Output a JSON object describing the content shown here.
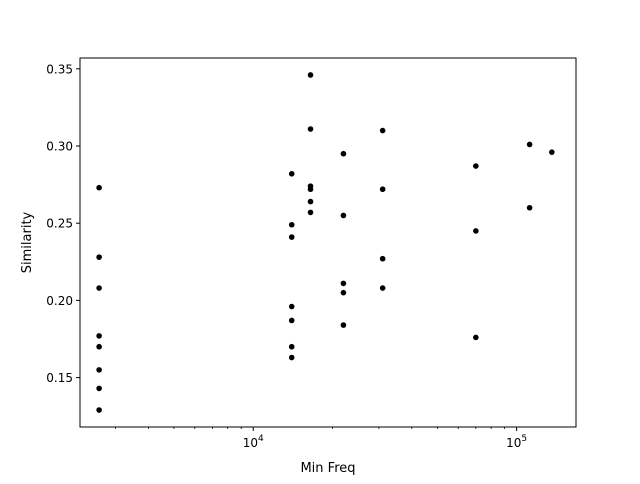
{
  "chart_data": {
    "type": "scatter",
    "title": "",
    "xlabel": "Min Freq",
    "ylabel": "Similarity",
    "xscale": "log",
    "xlim": [
      2200,
      168000
    ],
    "ylim": [
      0.118,
      0.357
    ],
    "grid": false,
    "marker_color": "#000000",
    "y_ticks": [
      {
        "value": 0.15,
        "label": "0.15"
      },
      {
        "value": 0.2,
        "label": "0.20"
      },
      {
        "value": 0.25,
        "label": "0.25"
      },
      {
        "value": 0.3,
        "label": "0.30"
      },
      {
        "value": 0.35,
        "label": "0.35"
      }
    ],
    "x_major_ticks": [
      {
        "value": 10000,
        "base": "10",
        "exp": "4"
      },
      {
        "value": 100000,
        "base": "10",
        "exp": "5"
      }
    ],
    "x_minor_ticks": [
      3000,
      4000,
      5000,
      6000,
      7000,
      8000,
      9000,
      20000,
      30000,
      40000,
      50000,
      60000,
      70000,
      80000,
      90000
    ],
    "points": [
      {
        "x": 2600,
        "y": 0.273
      },
      {
        "x": 2600,
        "y": 0.228
      },
      {
        "x": 2600,
        "y": 0.208
      },
      {
        "x": 2600,
        "y": 0.177
      },
      {
        "x": 2600,
        "y": 0.17
      },
      {
        "x": 2600,
        "y": 0.155
      },
      {
        "x": 2600,
        "y": 0.143
      },
      {
        "x": 2600,
        "y": 0.129
      },
      {
        "x": 14000,
        "y": 0.282
      },
      {
        "x": 14000,
        "y": 0.249
      },
      {
        "x": 14000,
        "y": 0.241
      },
      {
        "x": 14000,
        "y": 0.196
      },
      {
        "x": 14000,
        "y": 0.187
      },
      {
        "x": 14000,
        "y": 0.17
      },
      {
        "x": 14000,
        "y": 0.163
      },
      {
        "x": 16500,
        "y": 0.346
      },
      {
        "x": 16500,
        "y": 0.311
      },
      {
        "x": 16500,
        "y": 0.274
      },
      {
        "x": 16500,
        "y": 0.272
      },
      {
        "x": 16500,
        "y": 0.264
      },
      {
        "x": 16500,
        "y": 0.257
      },
      {
        "x": 22000,
        "y": 0.295
      },
      {
        "x": 22000,
        "y": 0.255
      },
      {
        "x": 22000,
        "y": 0.211
      },
      {
        "x": 22000,
        "y": 0.205
      },
      {
        "x": 22000,
        "y": 0.184
      },
      {
        "x": 31000,
        "y": 0.31
      },
      {
        "x": 31000,
        "y": 0.272
      },
      {
        "x": 31000,
        "y": 0.227
      },
      {
        "x": 31000,
        "y": 0.208
      },
      {
        "x": 70000,
        "y": 0.287
      },
      {
        "x": 70000,
        "y": 0.245
      },
      {
        "x": 70000,
        "y": 0.176
      },
      {
        "x": 112000,
        "y": 0.301
      },
      {
        "x": 112000,
        "y": 0.26
      },
      {
        "x": 136000,
        "y": 0.296
      }
    ]
  }
}
